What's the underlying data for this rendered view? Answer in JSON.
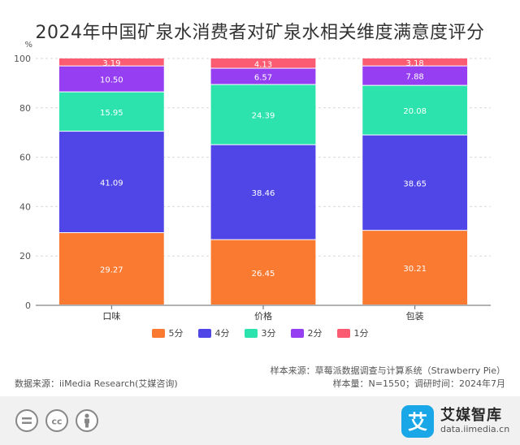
{
  "chart_data": {
    "type": "bar",
    "stacked": true,
    "title": "2024年中国矿泉水消费者对矿泉水相关维度满意度评分",
    "ylabel": "%",
    "ylim": [
      0,
      100
    ],
    "yticks": [
      0,
      20,
      40,
      60,
      80,
      100
    ],
    "grid": true,
    "legend_position": "bottom",
    "categories": [
      "口味",
      "价格",
      "包装"
    ],
    "series": [
      {
        "name": "5分",
        "color": "#fa7a32",
        "values": [
          29.27,
          26.45,
          30.21
        ]
      },
      {
        "name": "4分",
        "color": "#5046e8",
        "values": [
          41.09,
          38.46,
          38.65
        ]
      },
      {
        "name": "3分",
        "color": "#2de3ad",
        "values": [
          15.95,
          24.39,
          20.08
        ]
      },
      {
        "name": "2分",
        "color": "#963ef2",
        "values": [
          10.5,
          6.57,
          7.88
        ]
      },
      {
        "name": "1分",
        "color": "#fb5c72",
        "values": [
          3.19,
          4.13,
          3.18
        ]
      }
    ]
  },
  "notes": {
    "sample_source": "样本来源：草莓派数据调查与计算系统（Strawberry Pie）",
    "data_source": "数据来源：iiMedia Research(艾媒咨询)",
    "sample_size": "样本量：N=1550；调研时间：2024年7月"
  },
  "brand": {
    "name": "艾媒智库",
    "url": "data.iimedia.cn",
    "color": "#1aa7e8"
  },
  "cc_icons": [
    "equals-icon",
    "cc-icon",
    "person-icon"
  ]
}
